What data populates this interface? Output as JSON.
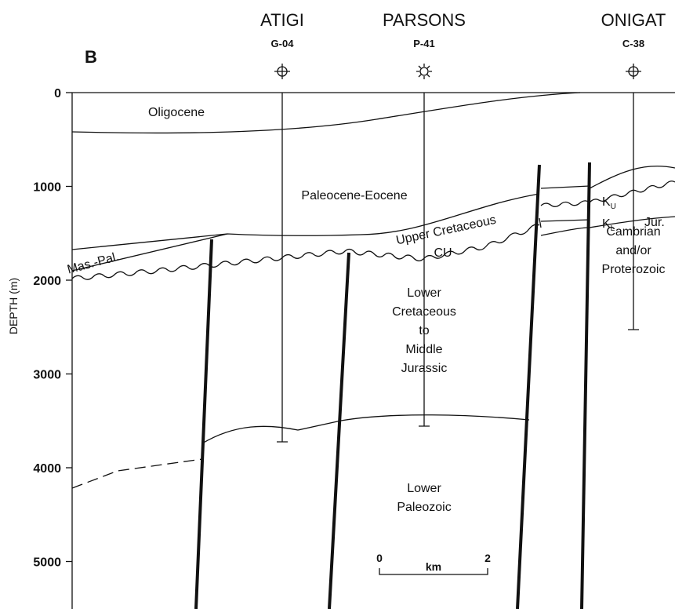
{
  "panel": "B",
  "wells": [
    {
      "name": "ATIGI",
      "code": "G-04"
    },
    {
      "name": "PARSONS",
      "code": "P-41"
    },
    {
      "name": "ONIGAT",
      "code": "C-38"
    }
  ],
  "axis": {
    "label": "DEPTH (m)",
    "ticks": [
      0,
      1000,
      2000,
      3000,
      4000,
      5000
    ]
  },
  "units": {
    "oligocene": "Oligocene",
    "paleocene_eocene": "Paleocene-Eocene",
    "upper_cretaceous": "Upper Cretaceous",
    "cu": "CU",
    "mas_pal": "Mas.-Pal.",
    "lower_cretaceous": [
      "Lower",
      "Cretaceous",
      "to",
      "Middle",
      "Jurassic"
    ],
    "lower_paleozoic": [
      "Lower",
      "Paleozoic"
    ],
    "k_upper": {
      "main": "K",
      "sub": "U"
    },
    "k_lower": {
      "main": "K",
      "sub": "L"
    },
    "jurassic": "Jur.",
    "cambrian": [
      "Cambrian",
      "and/or",
      "Proterozoic"
    ]
  },
  "scale_bar": {
    "start": "0",
    "unit": "km",
    "end": "2"
  }
}
